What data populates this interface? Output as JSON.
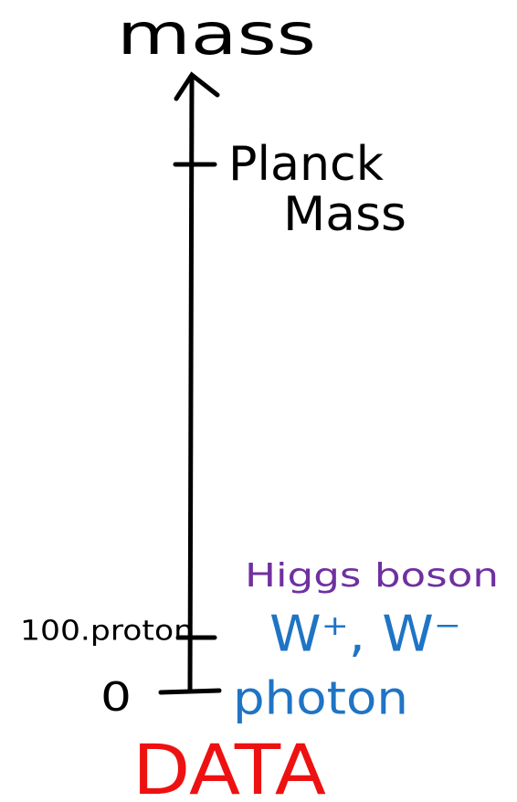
{
  "axis": {
    "title": "mass",
    "ticks": [
      {
        "label": [
          "Planck",
          "Mass"
        ]
      },
      {
        "label": "100.proton"
      },
      {
        "label": "0"
      }
    ]
  },
  "particles": [
    "Higgs boson",
    "W⁺, W⁻",
    "photon"
  ],
  "footer": "DATA"
}
